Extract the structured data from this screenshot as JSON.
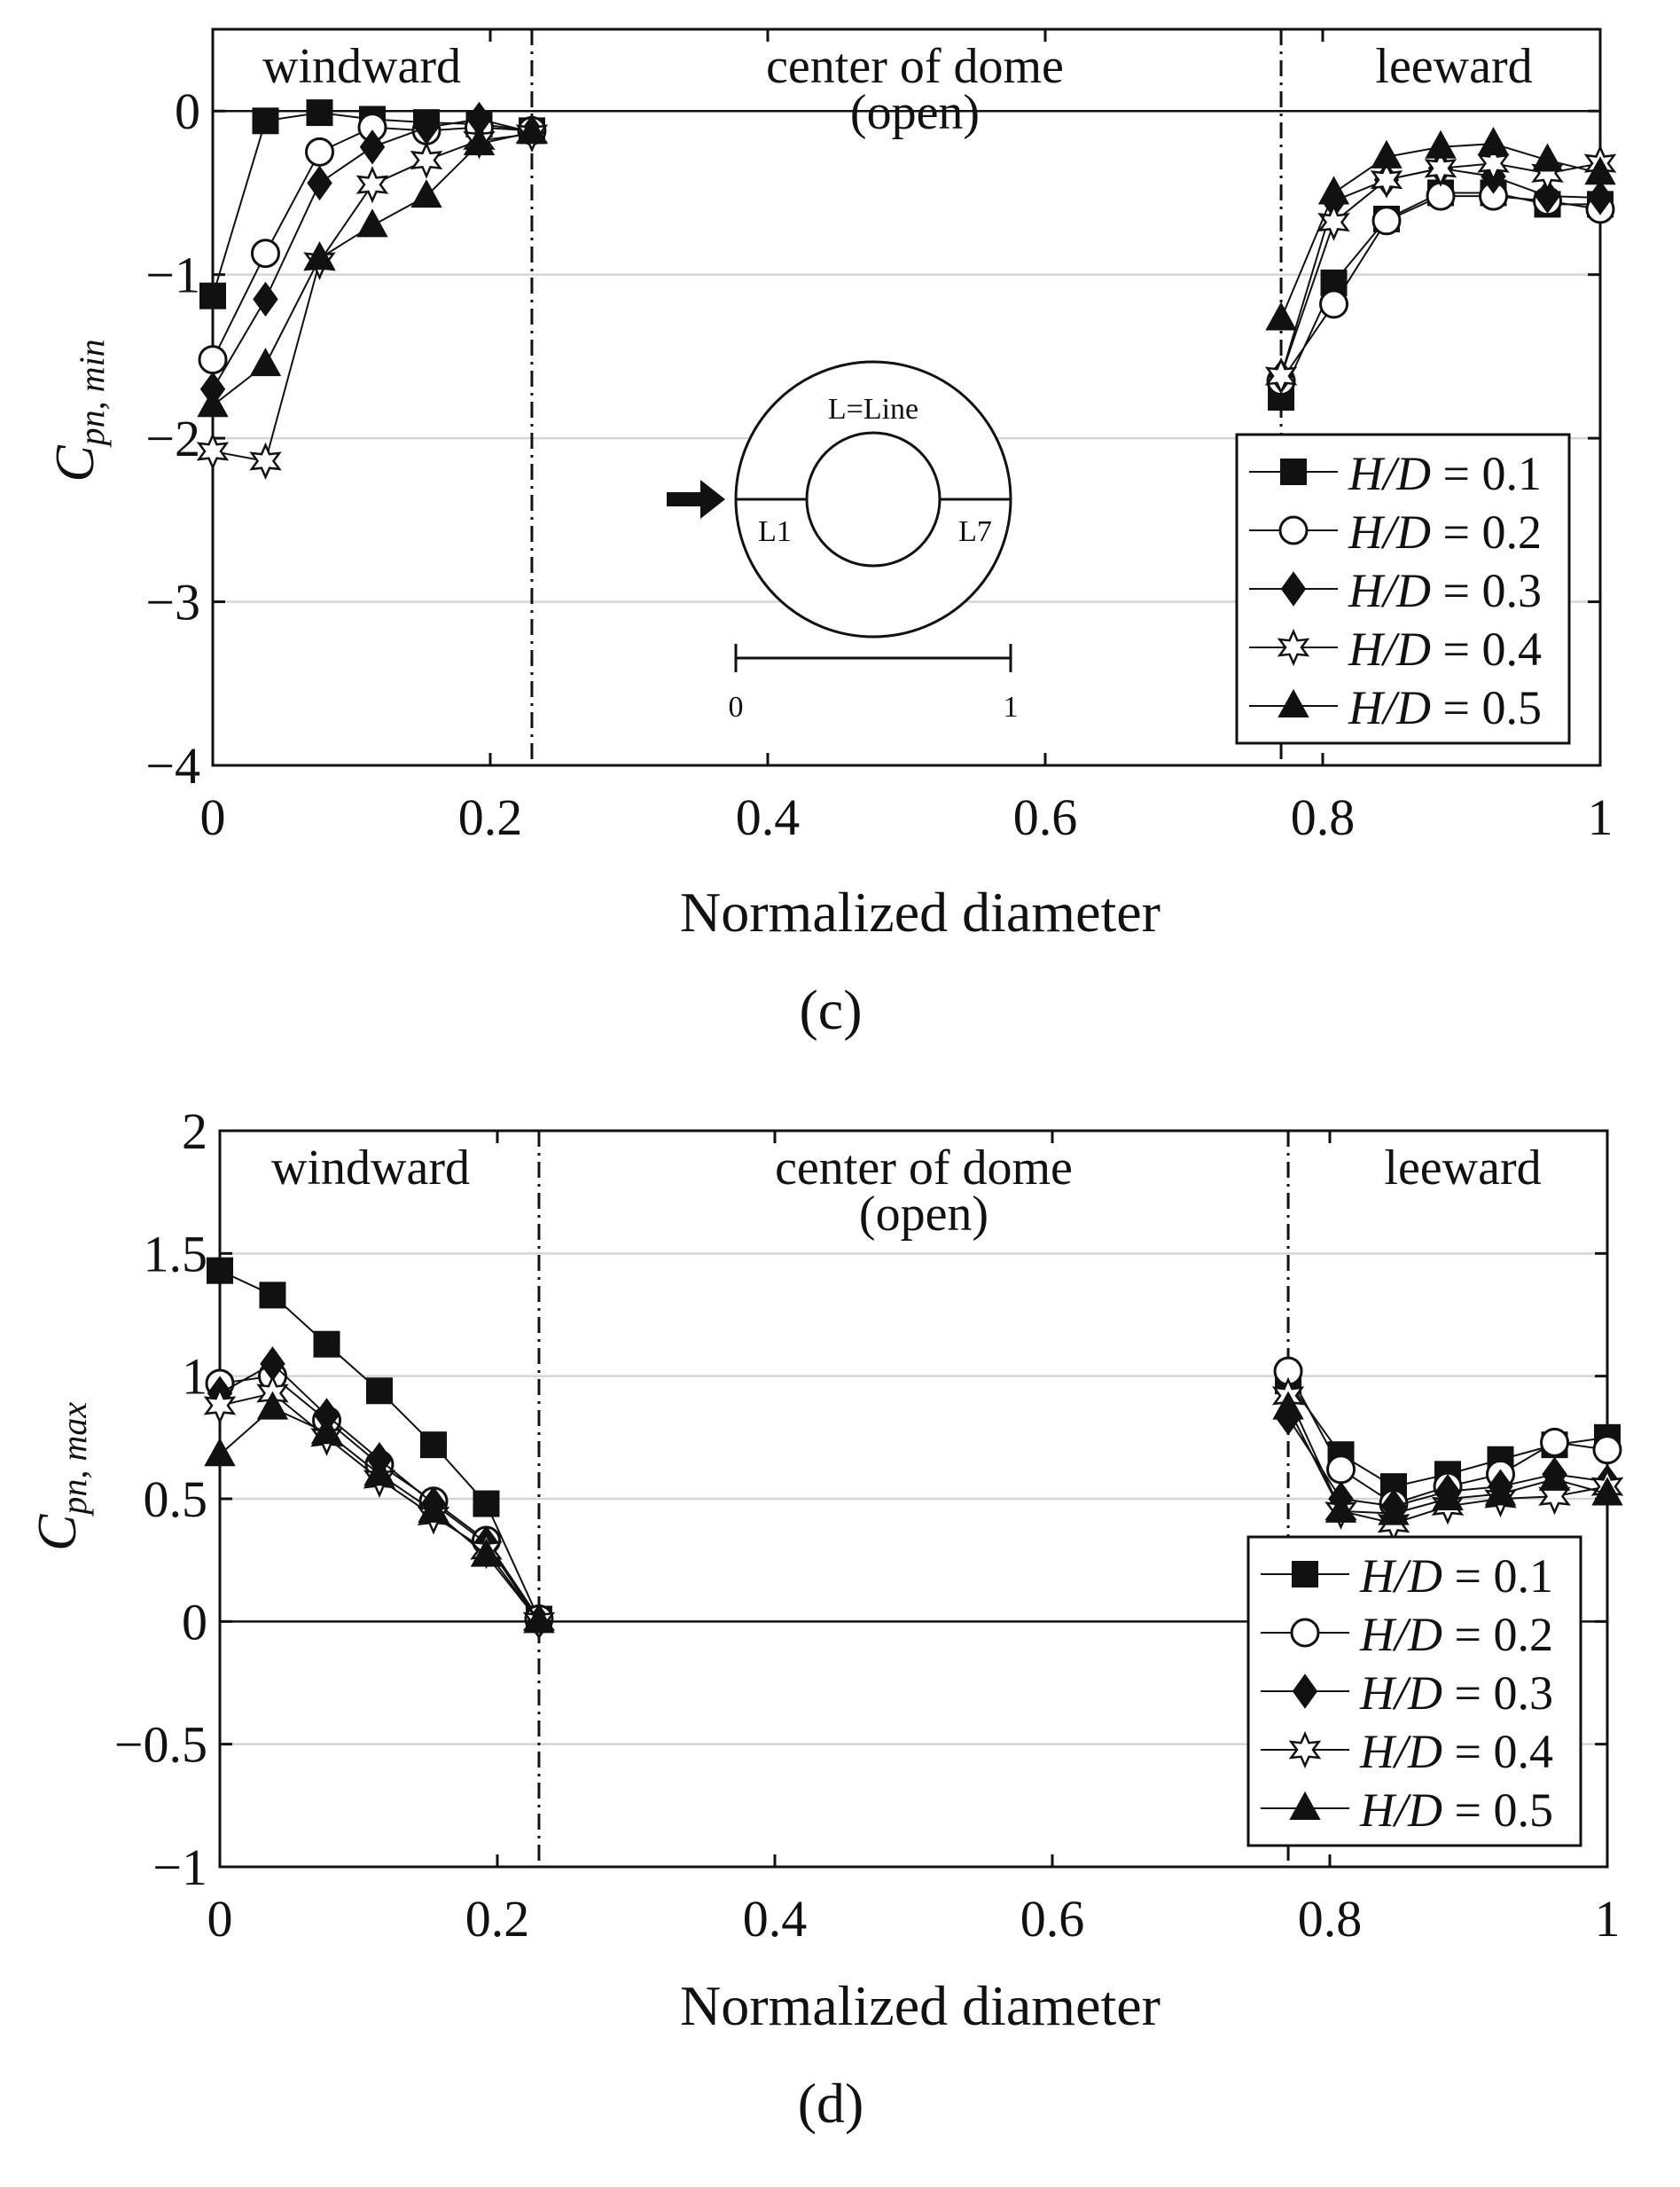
{
  "chart_data": [
    {
      "panel_label": "(c)",
      "type": "line",
      "title": "",
      "xlabel": "Normalized diameter",
      "ylabel_main": "C",
      "ylabel_sub": "pn, min",
      "xlim": [
        0,
        1
      ],
      "ylim": [
        -4,
        0.5
      ],
      "xticks": [
        0,
        0.2,
        0.4,
        0.6,
        0.8,
        1
      ],
      "xtick_labels": [
        "0",
        "0.2",
        "0.4",
        "0.6",
        "0.8",
        "1"
      ],
      "yticks": [
        0,
        -1,
        -2,
        -3,
        -4
      ],
      "ytick_labels": [
        "0",
        "−1",
        "−2",
        "−3",
        "−4"
      ],
      "grid": "horizontal",
      "regions": [
        {
          "label": "windward",
          "x_from": 0,
          "x_to": 0.23
        },
        {
          "label": "center of dome",
          "sublabel": "(open)",
          "x_from": 0.23,
          "x_to": 0.77
        },
        {
          "label": "leeward",
          "x_from": 0.77,
          "x_to": 1
        }
      ],
      "divider_x": [
        0.23,
        0.77
      ],
      "legend_position": "lower-right",
      "inset": {
        "top_label": "L=Line",
        "left_label": "L1",
        "right_label": "L7",
        "scale_start": "0",
        "scale_end": "1"
      },
      "series": [
        {
          "name": "H/D = 0.1",
          "name_prefix": "H/D",
          "name_value": " = 0.1",
          "marker": "square-filled",
          "windward": {
            "x": [
              0,
              0.038,
              0.077,
              0.115,
              0.154,
              0.192,
              0.23
            ],
            "y": [
              -1.13,
              -0.06,
              -0.01,
              -0.05,
              -0.07,
              -0.08,
              -0.12
            ]
          },
          "leeward": {
            "x": [
              0.77,
              0.808,
              0.846,
              0.885,
              0.923,
              0.962,
              1
            ],
            "y": [
              -1.75,
              -1.05,
              -0.66,
              -0.5,
              -0.5,
              -0.57,
              -0.57
            ]
          }
        },
        {
          "name": "H/D = 0.2",
          "name_prefix": "H/D",
          "name_value": " = 0.2",
          "marker": "circle-open",
          "windward": {
            "x": [
              0,
              0.038,
              0.077,
              0.115,
              0.154,
              0.192,
              0.23
            ],
            "y": [
              -1.52,
              -0.87,
              -0.25,
              -0.1,
              -0.12,
              -0.1,
              -0.12
            ]
          },
          "leeward": {
            "x": [
              0.77,
              0.808,
              0.846,
              0.885,
              0.923,
              0.962,
              1
            ],
            "y": [
              -1.65,
              -1.18,
              -0.67,
              -0.52,
              -0.52,
              -0.55,
              -0.6
            ]
          }
        },
        {
          "name": "H/D = 0.3",
          "name_prefix": "H/D",
          "name_value": " = 0.3",
          "marker": "diamond-filled",
          "windward": {
            "x": [
              0,
              0.038,
              0.077,
              0.115,
              0.154,
              0.192,
              0.23
            ],
            "y": [
              -1.7,
              -1.15,
              -0.44,
              -0.22,
              -0.1,
              -0.05,
              -0.13
            ]
          },
          "leeward": {
            "x": [
              0.77,
              0.808,
              0.846,
              0.885,
              0.923,
              0.962,
              1
            ],
            "y": [
              -1.62,
              -0.55,
              -0.42,
              -0.35,
              -0.4,
              -0.52,
              -0.53
            ]
          }
        },
        {
          "name": "H/D = 0.4",
          "name_prefix": "H/D",
          "name_value": " = 0.4",
          "marker": "star-open",
          "windward": {
            "x": [
              0,
              0.038,
              0.077,
              0.115,
              0.154,
              0.192,
              0.23
            ],
            "y": [
              -2.08,
              -2.14,
              -0.92,
              -0.45,
              -0.3,
              -0.18,
              -0.14
            ]
          },
          "leeward": {
            "x": [
              0.77,
              0.808,
              0.846,
              0.885,
              0.923,
              0.962,
              1
            ],
            "y": [
              -1.62,
              -0.68,
              -0.42,
              -0.35,
              -0.32,
              -0.38,
              -0.32
            ]
          }
        },
        {
          "name": "H/D = 0.5",
          "name_prefix": "H/D",
          "name_value": " = 0.5",
          "marker": "triangle-filled",
          "windward": {
            "x": [
              0,
              0.038,
              0.077,
              0.115,
              0.154,
              0.192,
              0.23
            ],
            "y": [
              -1.8,
              -1.55,
              -0.9,
              -0.7,
              -0.52,
              -0.2,
              -0.13
            ]
          },
          "leeward": {
            "x": [
              0.77,
              0.808,
              0.846,
              0.885,
              0.923,
              0.962,
              1
            ],
            "y": [
              -1.27,
              -0.5,
              -0.28,
              -0.22,
              -0.2,
              -0.3,
              -0.38
            ]
          }
        }
      ]
    },
    {
      "panel_label": "(d)",
      "type": "line",
      "title": "",
      "xlabel": "Normalized diameter",
      "ylabel_main": "C",
      "ylabel_sub": "pn, max",
      "xlim": [
        0,
        1
      ],
      "ylim": [
        -1,
        2
      ],
      "xticks": [
        0,
        0.2,
        0.4,
        0.6,
        0.8,
        1
      ],
      "xtick_labels": [
        "0",
        "0.2",
        "0.4",
        "0.6",
        "0.8",
        "1"
      ],
      "yticks": [
        2,
        1.5,
        1,
        0.5,
        0,
        -0.5,
        -1
      ],
      "ytick_labels": [
        "2",
        "1.5",
        "1",
        "0.5",
        "0",
        "−0.5",
        "−1"
      ],
      "grid": "horizontal",
      "regions": [
        {
          "label": "windward",
          "x_from": 0,
          "x_to": 0.23
        },
        {
          "label": "center of dome",
          "sublabel": "(open)",
          "x_from": 0.23,
          "x_to": 0.77
        },
        {
          "label": "leeward",
          "x_from": 0.77,
          "x_to": 1
        }
      ],
      "divider_x": [
        0.23,
        0.77
      ],
      "legend_position": "lower-right",
      "series": [
        {
          "name": "H/D = 0.1",
          "name_prefix": "H/D",
          "name_value": " = 0.1",
          "marker": "square-filled",
          "windward": {
            "x": [
              0,
              0.038,
              0.077,
              0.115,
              0.154,
              0.192,
              0.23
            ],
            "y": [
              1.43,
              1.33,
              1.13,
              0.94,
              0.72,
              0.48,
              0.01
            ]
          },
          "leeward": {
            "x": [
              0.77,
              0.808,
              0.846,
              0.885,
              0.923,
              0.962,
              1
            ],
            "y": [
              0.98,
              0.68,
              0.55,
              0.6,
              0.66,
              0.72,
              0.75
            ]
          }
        },
        {
          "name": "H/D = 0.2",
          "name_prefix": "H/D",
          "name_value": " = 0.2",
          "marker": "circle-open",
          "windward": {
            "x": [
              0,
              0.038,
              0.077,
              0.115,
              0.154,
              0.192,
              0.23
            ],
            "y": [
              0.97,
              1.0,
              0.82,
              0.64,
              0.49,
              0.33,
              0.01
            ]
          },
          "leeward": {
            "x": [
              0.77,
              0.808,
              0.846,
              0.885,
              0.923,
              0.962,
              1
            ],
            "y": [
              1.02,
              0.62,
              0.48,
              0.55,
              0.6,
              0.73,
              0.7
            ]
          }
        },
        {
          "name": "H/D = 0.3",
          "name_prefix": "H/D",
          "name_value": " = 0.3",
          "marker": "diamond-filled",
          "windward": {
            "x": [
              0,
              0.038,
              0.077,
              0.115,
              0.154,
              0.192,
              0.23
            ],
            "y": [
              0.93,
              1.05,
              0.84,
              0.66,
              0.48,
              0.32,
              0.0
            ]
          },
          "leeward": {
            "x": [
              0.77,
              0.808,
              0.846,
              0.885,
              0.923,
              0.962,
              1
            ],
            "y": [
              0.83,
              0.5,
              0.47,
              0.53,
              0.55,
              0.6,
              0.57
            ]
          }
        },
        {
          "name": "H/D = 0.4",
          "name_prefix": "H/D",
          "name_value": " = 0.4",
          "marker": "star-open",
          "windward": {
            "x": [
              0,
              0.038,
              0.077,
              0.115,
              0.154,
              0.192,
              0.23
            ],
            "y": [
              0.88,
              0.93,
              0.75,
              0.58,
              0.43,
              0.29,
              0.0
            ]
          },
          "leeward": {
            "x": [
              0.77,
              0.808,
              0.846,
              0.885,
              0.923,
              0.962,
              1
            ],
            "y": [
              0.92,
              0.45,
              0.4,
              0.47,
              0.5,
              0.51,
              0.55
            ]
          }
        },
        {
          "name": "H/D = 0.5",
          "name_prefix": "H/D",
          "name_value": " = 0.5",
          "marker": "triangle-filled",
          "windward": {
            "x": [
              0,
              0.038,
              0.077,
              0.115,
              0.154,
              0.192,
              0.23
            ],
            "y": [
              0.68,
              0.87,
              0.77,
              0.6,
              0.45,
              0.27,
              0.0
            ]
          },
          "leeward": {
            "x": [
              0.77,
              0.808,
              0.846,
              0.885,
              0.923,
              0.962,
              1
            ],
            "y": [
              0.87,
              0.45,
              0.44,
              0.5,
              0.52,
              0.58,
              0.52
            ]
          }
        }
      ]
    }
  ]
}
